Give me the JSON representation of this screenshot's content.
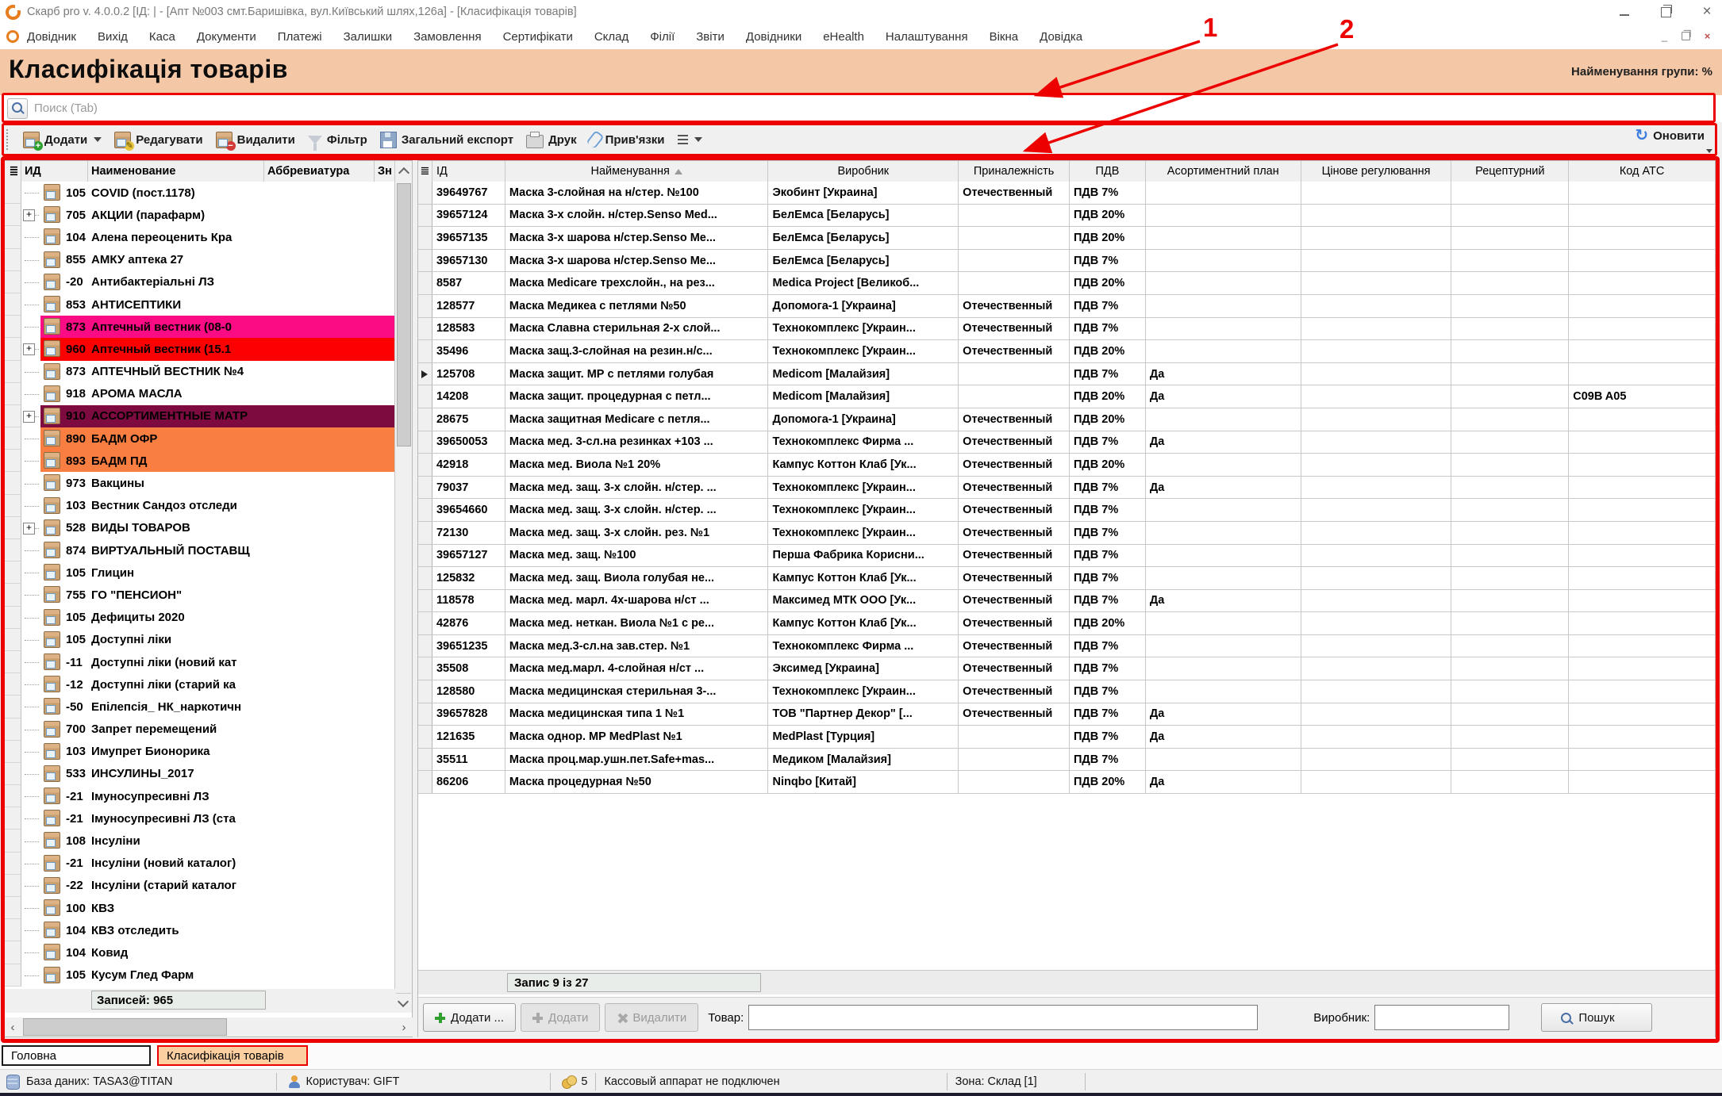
{
  "window": {
    "title": "Скарб pro v. 4.0.0.2 [ІД:       | - [Апт №003 смт.Баришівка, вул.Київський шлях,126а] - [Класифікація товарів]"
  },
  "menu": {
    "items": [
      "Довідник",
      "Вихід",
      "Каса",
      "Документи",
      "Платежі",
      "Залишки",
      "Замовлення",
      "Сертифікати",
      "Склад",
      "Філії",
      "Звіти",
      "Довідники",
      "eHealth",
      "Налаштування",
      "Вікна",
      "Довідка"
    ]
  },
  "header": {
    "title": "Класифікація товарів",
    "group_label": "Найменування групи: %"
  },
  "search": {
    "placeholder": "Поиск (Tab)"
  },
  "toolbar": {
    "add": "Додати",
    "edit": "Редагувати",
    "delete": "Видалити",
    "filter": "Фільтр",
    "export": "Загальний експорт",
    "print": "Друк",
    "links": "Прив'язки",
    "refresh": "Оновити"
  },
  "tree": {
    "columns": [
      "ИД",
      "Наименование",
      "Аббревиатура",
      "Зн"
    ],
    "footer": "Записей: 965",
    "rows": [
      {
        "id": "105",
        "label": "COVID (пост.1178)"
      },
      {
        "id": "705",
        "label": "АКЦИИ (парафарм)",
        "expand": true
      },
      {
        "id": "104",
        "label": "Алена переоценить Кра"
      },
      {
        "id": "855",
        "label": "АМКУ аптека 27"
      },
      {
        "id": "-20",
        "label": "Антибактеріальні ЛЗ"
      },
      {
        "id": "853",
        "label": "АНТИСЕПТИКИ"
      },
      {
        "id": "873",
        "label": "Аптечный вестник (08-0",
        "bg": "#fb0b84"
      },
      {
        "id": "960",
        "label": "Аптечный вестник (15.1",
        "bg": "#fd0002",
        "expand": true
      },
      {
        "id": "873",
        "label": "АПТЕЧНЫЙ ВЕСТНИК №4"
      },
      {
        "id": "918",
        "label": "АРОМА МАСЛА"
      },
      {
        "id": "910",
        "label": "АССОРТИМЕНТНЫЕ  МАТР",
        "bg": "#7d0b40",
        "expand": true
      },
      {
        "id": "890",
        "label": "БАДМ ОФР",
        "bg": "#f97e41"
      },
      {
        "id": "893",
        "label": "БАДМ ПД",
        "bg": "#f97e41"
      },
      {
        "id": "973",
        "label": "Вакцины"
      },
      {
        "id": "103",
        "label": "Вестник Сандоз отследи"
      },
      {
        "id": "528",
        "label": "ВИДЫ ТОВАРОВ",
        "expand": true
      },
      {
        "id": "874",
        "label": "ВИРТУАЛЬНЫЙ ПОСТАВЩ"
      },
      {
        "id": "105",
        "label": "Глицин"
      },
      {
        "id": "755",
        "label": "ГО \"ПЕНСИОН\""
      },
      {
        "id": "105",
        "label": "Дефициты 2020"
      },
      {
        "id": "105",
        "label": "Доступні ліки"
      },
      {
        "id": "-11",
        "label": "Доступні ліки (новий кат"
      },
      {
        "id": "-12",
        "label": "Доступні ліки (старий ка"
      },
      {
        "id": "-50",
        "label": "Епілепсія_ НК_наркотичн"
      },
      {
        "id": "700",
        "label": "Запрет перемещений"
      },
      {
        "id": "103",
        "label": "Имупрет Бионорика"
      },
      {
        "id": "533",
        "label": "ИНСУЛИНЫ_2017"
      },
      {
        "id": "-21",
        "label": "Імуносупресивні ЛЗ"
      },
      {
        "id": "-21",
        "label": "Імуносупресивні ЛЗ (ста"
      },
      {
        "id": "108",
        "label": "Інсуліни"
      },
      {
        "id": "-21",
        "label": "Інсуліни (новий каталог)"
      },
      {
        "id": "-22",
        "label": "Інсуліни (старий каталог"
      },
      {
        "id": "100",
        "label": "КВЗ"
      },
      {
        "id": "104",
        "label": "КВЗ отследить"
      },
      {
        "id": "104",
        "label": "Ковид"
      },
      {
        "id": "105",
        "label": "Кусум Глед Фарм"
      }
    ]
  },
  "grid": {
    "columns": [
      "ІД",
      "Найменування",
      "Виробник",
      "Приналежність",
      "ПДВ",
      "Асортиментний план",
      "Цінове регулювання",
      "Рецептурний",
      "Код АТС"
    ],
    "status": "Запис 9 із 27",
    "rows": [
      {
        "id": "39649767",
        "name": "Маска 3-слойная на н/стер. №100",
        "vendor": "Экобинт [Украина]",
        "origin": "Отечественный",
        "vat": "ПДВ 7%",
        "plan": "",
        "atc": ""
      },
      {
        "id": "39657124",
        "name": "Маска 3-х слойн. н/стер.Senso Med...",
        "vendor": "БелЕмса [Беларусь]",
        "origin": "",
        "vat": "ПДВ 20%",
        "plan": "",
        "atc": ""
      },
      {
        "id": "39657135",
        "name": "Маска 3-х шарова н/стер.Senso Ме...",
        "vendor": "БелЕмса [Беларусь]",
        "origin": "",
        "vat": "ПДВ 20%",
        "plan": "",
        "atc": ""
      },
      {
        "id": "39657130",
        "name": "Маска 3-х шарова н/стер.Senso Ме...",
        "vendor": "БелЕмса [Беларусь]",
        "origin": "",
        "vat": "ПДВ 7%",
        "plan": "",
        "atc": ""
      },
      {
        "id": "8587",
        "name": "Маска Medicare трехслойн., на рез...",
        "vendor": "Medica Project [Великоб...",
        "origin": "",
        "vat": "ПДВ 20%",
        "plan": "",
        "atc": ""
      },
      {
        "id": "128577",
        "name": "Маска Медикеа с петлями №50",
        "vendor": "Допомога-1 [Украина]",
        "origin": "Отечественный",
        "vat": "ПДВ 7%",
        "plan": "",
        "atc": ""
      },
      {
        "id": "128583",
        "name": "Маска Славна стерильная 2-х слой...",
        "vendor": "Технокомплекс [Украин...",
        "origin": "Отечественный",
        "vat": "ПДВ 7%",
        "plan": "",
        "atc": ""
      },
      {
        "id": "35496",
        "name": "Маска защ.3-слойная на резин.н/с...",
        "vendor": "Технокомплекс [Украин...",
        "origin": "Отечественный",
        "vat": "ПДВ 20%",
        "plan": "",
        "atc": ""
      },
      {
        "id": "125708",
        "name": "Маска защит. МР с петлями  голубая",
        "vendor": "Medicom [Малайзия]",
        "origin": "",
        "vat": "ПДВ 7%",
        "plan": "Да",
        "atc": "",
        "current": true
      },
      {
        "id": "14208",
        "name": "Маска защит. процедурная с петл...",
        "vendor": "Medicom [Малайзия]",
        "origin": "",
        "vat": "ПДВ 20%",
        "plan": "Да",
        "atc": "C09B A05"
      },
      {
        "id": "28675",
        "name": "Маска защитная Medicare с петля...",
        "vendor": "Допомога-1 [Украина]",
        "origin": "Отечественный",
        "vat": "ПДВ 20%",
        "plan": "",
        "atc": ""
      },
      {
        "id": "39650053",
        "name": "Маска мед. 3-сл.на резинках +103 ...",
        "vendor": "Технокомплекс Фирма ...",
        "origin": "Отечественный",
        "vat": "ПДВ 7%",
        "plan": "Да",
        "atc": ""
      },
      {
        "id": "42918",
        "name": "Маска мед. Виола №1 20%",
        "vendor": "Кампус Коттон Клаб [Ук...",
        "origin": "Отечественный",
        "vat": "ПДВ 20%",
        "plan": "",
        "atc": ""
      },
      {
        "id": "79037",
        "name": "Маска мед. защ. 3-х слойн. н/стер. ...",
        "vendor": "Технокомплекс [Украин...",
        "origin": "Отечественный",
        "vat": "ПДВ 7%",
        "plan": "Да",
        "atc": ""
      },
      {
        "id": "39654660",
        "name": "Маска мед. защ. 3-х слойн. н/стер. ...",
        "vendor": "Технокомплекс [Украин...",
        "origin": "Отечественный",
        "vat": "ПДВ 7%",
        "plan": "",
        "atc": ""
      },
      {
        "id": "72130",
        "name": "Маска мед. защ. 3-х слойн. рез. №1",
        "vendor": "Технокомплекс [Украин...",
        "origin": "Отечественный",
        "vat": "ПДВ 7%",
        "plan": "",
        "atc": ""
      },
      {
        "id": "39657127",
        "name": "Маска мед. защ. №100",
        "vendor": "Перша Фабрика Корисни...",
        "origin": "Отечественный",
        "vat": "ПДВ 7%",
        "plan": "",
        "atc": ""
      },
      {
        "id": "125832",
        "name": "Маска мед. защ. Виола голубая не...",
        "vendor": "Кампус Коттон Клаб [Ук...",
        "origin": "Отечественный",
        "vat": "ПДВ 7%",
        "plan": "",
        "atc": ""
      },
      {
        "id": "118578",
        "name": "Маска мед. марл. 4х-шарова н/ст ...",
        "vendor": "Максимед МТК ООО [Ук...",
        "origin": "Отечественный",
        "vat": "ПДВ 7%",
        "plan": "Да",
        "atc": ""
      },
      {
        "id": "42876",
        "name": "Маска мед. неткан. Виола №1 с ре...",
        "vendor": "Кампус Коттон Клаб [Ук...",
        "origin": "Отечественный",
        "vat": "ПДВ 20%",
        "plan": "",
        "atc": ""
      },
      {
        "id": "39651235",
        "name": "Маска мед.3-сл.на зав.стер.  №1",
        "vendor": "Технокомплекс Фирма ...",
        "origin": "Отечественный",
        "vat": "ПДВ 7%",
        "plan": "",
        "atc": ""
      },
      {
        "id": "35508",
        "name": "Маска мед.марл. 4-слойная н/ст ...",
        "vendor": "Эксимед [Украина]",
        "origin": "Отечественный",
        "vat": "ПДВ 7%",
        "plan": "",
        "atc": ""
      },
      {
        "id": "128580",
        "name": "Маска медицинская стерильная 3-...",
        "vendor": "Технокомплекс [Украин...",
        "origin": "Отечественный",
        "vat": "ПДВ 7%",
        "plan": "",
        "atc": ""
      },
      {
        "id": "39657828",
        "name": "Маска медицинская типа 1 №1",
        "vendor": "ТОВ \"Партнер Декор\" [...",
        "origin": "Отечественный",
        "vat": "ПДВ 7%",
        "plan": "Да",
        "atc": ""
      },
      {
        "id": "121635",
        "name": "Маска однор. МР MedPlast №1",
        "vendor": "MedPlast [Турция]",
        "origin": "",
        "vat": "ПДВ 7%",
        "plan": "Да",
        "atc": ""
      },
      {
        "id": "35511",
        "name": "Маска проц.мар.ушн.пет.Safe+mas...",
        "vendor": "Медиком [Малайзия]",
        "origin": "",
        "vat": "ПДВ 7%",
        "plan": "",
        "atc": ""
      },
      {
        "id": "86206",
        "name": "Маска процедурная №50",
        "vendor": "Ninqbo [Китай]",
        "origin": "",
        "vat": "ПДВ 20%",
        "plan": "Да",
        "atc": ""
      }
    ]
  },
  "bottom_controls": {
    "add_ellipsis": "Додати ...",
    "add": "Додати",
    "delete": "Видалити",
    "product_label": "Товар:",
    "vendor_label": "Виробник:",
    "search_button": "Пошук"
  },
  "tabs": [
    {
      "label": "Головна",
      "active": false
    },
    {
      "label": "Класифікація товарів",
      "active": true
    }
  ],
  "statusbar": {
    "db": "База даних: TASA3@TITAN",
    "user": "Користувач: GIFT",
    "count": "5",
    "cash": "Кассовый аппарат не подключен",
    "zone": "Зона: Склад [1]"
  },
  "annotations": {
    "label1": "1",
    "label2": "2",
    "color": "#ec0000"
  },
  "colors": {
    "accent_peach": "#f4c7a6",
    "tab_active_bg": "#fbcfa0",
    "row_pink": "#fb0b84",
    "row_red": "#fd0002",
    "row_maroon": "#7d0b40",
    "row_orange": "#f97e41",
    "annotation_red": "#ec0000"
  }
}
